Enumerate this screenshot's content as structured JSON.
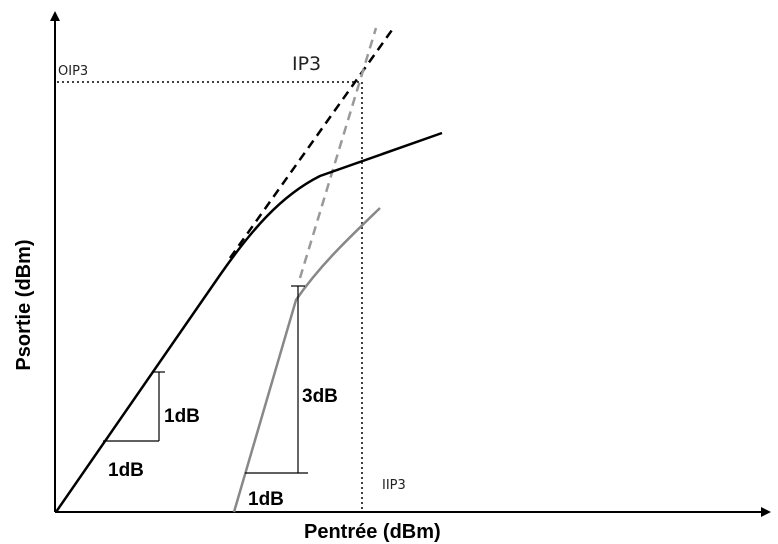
{
  "diagram": {
    "x_axis_label": "Pentrée (dBm)",
    "y_axis_label": "Psortie (dBm)",
    "ip3_label": "IP3",
    "oip3_label": "OIP3",
    "iip3_label": "IIP3",
    "fundamental_step": {
      "horizontal_label": "1dB",
      "vertical_label": "1dB"
    },
    "third_order_step": {
      "horizontal_label": "1dB",
      "vertical_label": "3dB"
    }
  },
  "colors": {
    "fundamental": "#000000",
    "third_order": "#888888",
    "axes": "#000000",
    "guides": "#000000"
  }
}
